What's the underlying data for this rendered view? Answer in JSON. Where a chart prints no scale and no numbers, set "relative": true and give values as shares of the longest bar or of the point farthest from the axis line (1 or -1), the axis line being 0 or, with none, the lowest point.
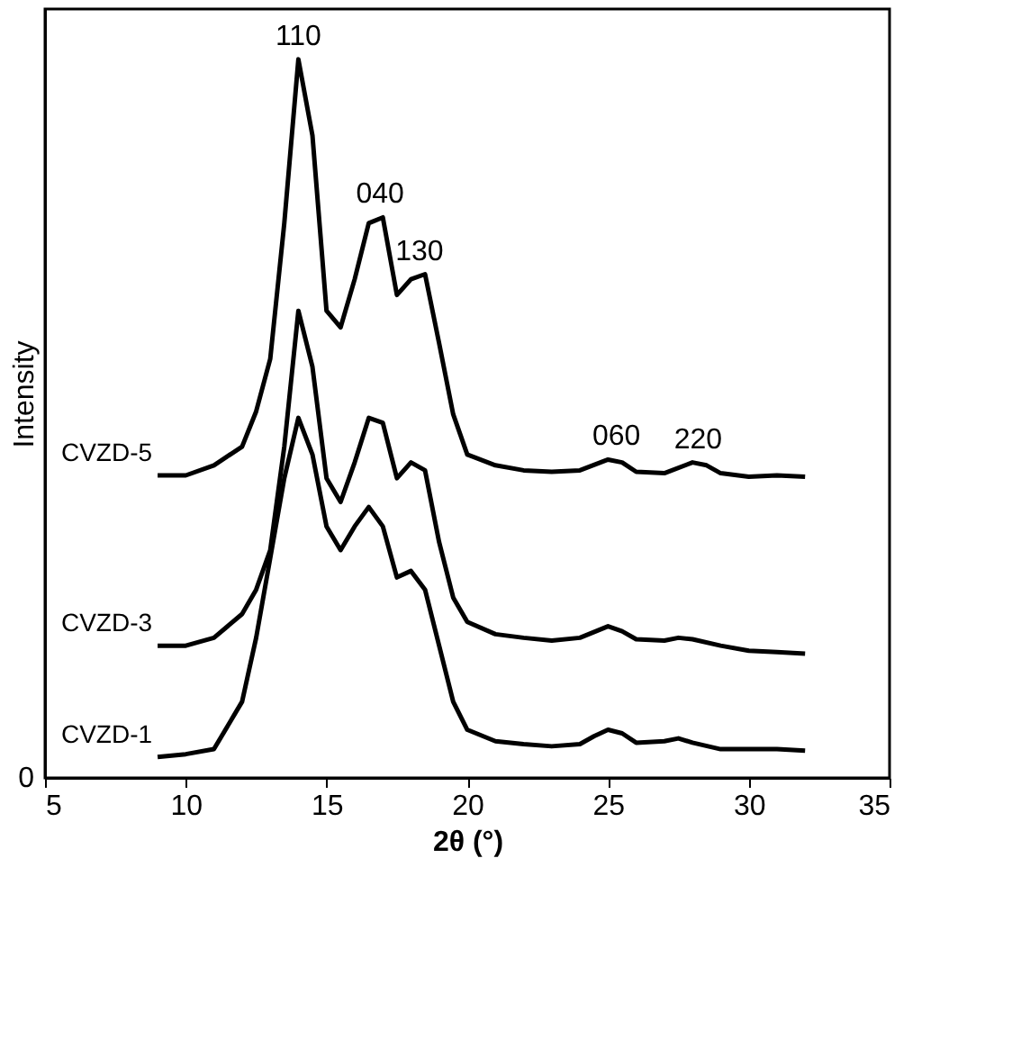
{
  "chart_data": {
    "type": "line",
    "relative": true,
    "xlabel": "2θ (°)",
    "ylabel": "Intensity",
    "xlim": [
      5,
      35
    ],
    "xticks": [
      5,
      10,
      15,
      20,
      25,
      30,
      35
    ],
    "grid": false,
    "marker": "none",
    "line_style": "solid",
    "series": [
      {
        "name": "CVZD-5",
        "color": "#000000",
        "x": [
          9,
          10,
          11,
          12,
          12.5,
          13,
          13.5,
          14,
          14.5,
          15,
          15.5,
          16,
          16.5,
          17,
          17.5,
          18,
          18.5,
          19,
          19.5,
          20,
          21,
          22,
          23,
          24,
          25,
          25.5,
          26,
          27,
          28,
          28.5,
          29,
          30,
          31,
          32
        ],
        "values": [
          0.421,
          0.421,
          0.435,
          0.461,
          0.51,
          0.583,
          0.772,
          1,
          0.894,
          0.65,
          0.627,
          0.694,
          0.772,
          0.78,
          0.672,
          0.694,
          0.701,
          0.605,
          0.506,
          0.45,
          0.435,
          0.428,
          0.426,
          0.428,
          0.443,
          0.439,
          0.426,
          0.424,
          0.439,
          0.435,
          0.424,
          0.419,
          0.421,
          0.419
        ]
      },
      {
        "name": "CVZD-3",
        "color": "#000000",
        "x": [
          9,
          10,
          11,
          12,
          12.5,
          13,
          13.5,
          14,
          14.5,
          15,
          15.5,
          16,
          16.5,
          17,
          17.5,
          18,
          18.5,
          19,
          19.5,
          20,
          21,
          22,
          23,
          24,
          25,
          25.5,
          26,
          27,
          27.5,
          28,
          29,
          30,
          31,
          32
        ],
        "values": [
          0.184,
          0.184,
          0.195,
          0.228,
          0.262,
          0.317,
          0.461,
          0.65,
          0.572,
          0.417,
          0.384,
          0.439,
          0.501,
          0.494,
          0.417,
          0.439,
          0.428,
          0.328,
          0.251,
          0.217,
          0.2,
          0.195,
          0.191,
          0.195,
          0.211,
          0.204,
          0.193,
          0.191,
          0.195,
          0.193,
          0.184,
          0.177,
          0.175,
          0.173
        ]
      },
      {
        "name": "CVZD-1",
        "color": "#000000",
        "x": [
          9,
          10,
          11,
          12,
          12.5,
          13,
          13.5,
          14,
          14.5,
          15,
          15.5,
          16,
          16.5,
          17,
          17.5,
          18,
          18.5,
          19,
          19.5,
          20,
          21,
          22,
          23,
          24,
          24.5,
          25,
          25.5,
          26,
          27,
          27.5,
          28,
          29,
          30,
          31,
          32
        ],
        "values": [
          0.029,
          0.033,
          0.04,
          0.106,
          0.195,
          0.306,
          0.417,
          0.501,
          0.45,
          0.35,
          0.317,
          0.35,
          0.377,
          0.35,
          0.279,
          0.288,
          0.262,
          0.184,
          0.106,
          0.067,
          0.051,
          0.047,
          0.044,
          0.047,
          0.058,
          0.067,
          0.062,
          0.049,
          0.051,
          0.055,
          0.049,
          0.04,
          0.04,
          0.04,
          0.038
        ]
      }
    ],
    "annotations": [
      {
        "text": "110",
        "x": 14,
        "y": 1
      },
      {
        "text": "040",
        "x": 16.9,
        "y": 0.78
      },
      {
        "text": "130",
        "x": 18.3,
        "y": 0.7
      },
      {
        "text": "060",
        "x": 25.3,
        "y": 0.443
      },
      {
        "text": "220",
        "x": 28.2,
        "y": 0.439
      },
      "0"
    ]
  }
}
